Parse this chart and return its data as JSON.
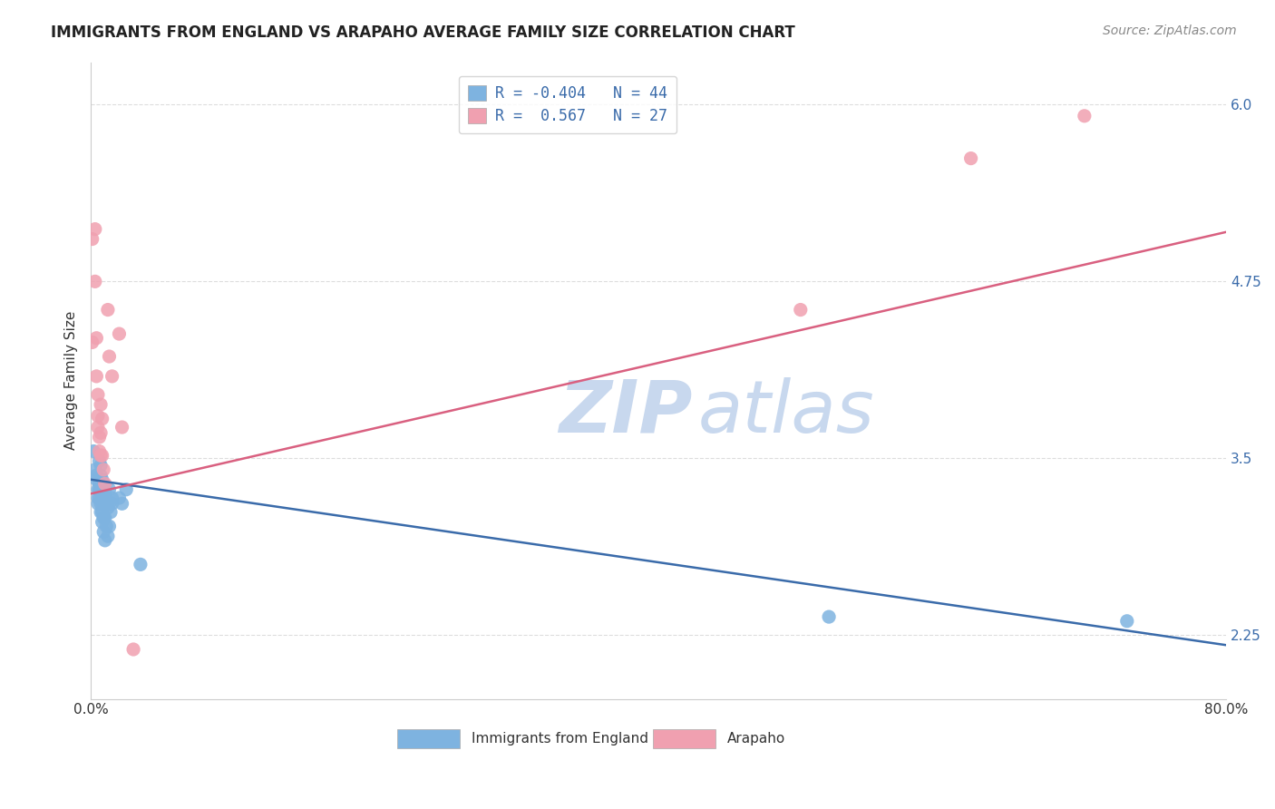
{
  "title": "IMMIGRANTS FROM ENGLAND VS ARAPAHO AVERAGE FAMILY SIZE CORRELATION CHART",
  "source": "Source: ZipAtlas.com",
  "ylabel": "Average Family Size",
  "xlim": [
    0.0,
    0.8
  ],
  "ylim": [
    1.8,
    6.3
  ],
  "yticks": [
    2.25,
    3.5,
    4.75,
    6.0
  ],
  "legend_entry_1": "R = -0.404   N = 44",
  "legend_entry_2": "R =  0.567   N = 27",
  "england_scatter": [
    [
      0.002,
      3.55
    ],
    [
      0.003,
      3.42
    ],
    [
      0.004,
      3.38
    ],
    [
      0.004,
      3.35
    ],
    [
      0.005,
      3.28
    ],
    [
      0.005,
      3.22
    ],
    [
      0.005,
      3.18
    ],
    [
      0.006,
      3.48
    ],
    [
      0.006,
      3.32
    ],
    [
      0.006,
      3.28
    ],
    [
      0.006,
      3.22
    ],
    [
      0.007,
      3.45
    ],
    [
      0.007,
      3.38
    ],
    [
      0.007,
      3.28
    ],
    [
      0.007,
      3.18
    ],
    [
      0.007,
      3.12
    ],
    [
      0.008,
      3.35
    ],
    [
      0.008,
      3.28
    ],
    [
      0.008,
      3.22
    ],
    [
      0.008,
      3.12
    ],
    [
      0.008,
      3.05
    ],
    [
      0.009,
      3.32
    ],
    [
      0.009,
      3.18
    ],
    [
      0.009,
      3.08
    ],
    [
      0.009,
      2.98
    ],
    [
      0.01,
      3.28
    ],
    [
      0.01,
      3.08
    ],
    [
      0.01,
      2.92
    ],
    [
      0.011,
      3.22
    ],
    [
      0.011,
      3.02
    ],
    [
      0.012,
      3.15
    ],
    [
      0.012,
      2.95
    ],
    [
      0.013,
      3.28
    ],
    [
      0.013,
      3.18
    ],
    [
      0.013,
      3.02
    ],
    [
      0.014,
      3.12
    ],
    [
      0.015,
      3.22
    ],
    [
      0.015,
      3.18
    ],
    [
      0.02,
      3.22
    ],
    [
      0.022,
      3.18
    ],
    [
      0.025,
      3.28
    ],
    [
      0.035,
      2.75
    ],
    [
      0.52,
      2.38
    ],
    [
      0.73,
      2.35
    ]
  ],
  "arapaho_scatter": [
    [
      0.001,
      5.05
    ],
    [
      0.001,
      4.32
    ],
    [
      0.003,
      5.12
    ],
    [
      0.003,
      4.75
    ],
    [
      0.004,
      4.35
    ],
    [
      0.004,
      4.08
    ],
    [
      0.005,
      3.95
    ],
    [
      0.005,
      3.8
    ],
    [
      0.005,
      3.72
    ],
    [
      0.006,
      3.65
    ],
    [
      0.006,
      3.55
    ],
    [
      0.007,
      3.88
    ],
    [
      0.007,
      3.68
    ],
    [
      0.007,
      3.52
    ],
    [
      0.008,
      3.78
    ],
    [
      0.008,
      3.52
    ],
    [
      0.009,
      3.42
    ],
    [
      0.01,
      3.32
    ],
    [
      0.012,
      4.55
    ],
    [
      0.013,
      4.22
    ],
    [
      0.015,
      4.08
    ],
    [
      0.02,
      4.38
    ],
    [
      0.022,
      3.72
    ],
    [
      0.03,
      2.15
    ],
    [
      0.5,
      4.55
    ],
    [
      0.62,
      5.62
    ],
    [
      0.7,
      5.92
    ]
  ],
  "england_line": [
    [
      0.0,
      3.35
    ],
    [
      0.8,
      2.18
    ]
  ],
  "arapaho_line": [
    [
      0.0,
      3.25
    ],
    [
      0.8,
      5.1
    ]
  ],
  "england_color": "#7eb3e0",
  "arapaho_color": "#f0a0b0",
  "england_line_color": "#3a6baa",
  "arapaho_line_color": "#d96080",
  "background_color": "#ffffff",
  "grid_color": "#dddddd",
  "watermark_zip": "ZIP",
  "watermark_atlas": "atlas",
  "watermark_color_zip": "#c8d8ee",
  "watermark_color_atlas": "#c8d8ee",
  "title_fontsize": 12,
  "axis_label_fontsize": 11,
  "tick_fontsize": 11,
  "legend_fontsize": 12,
  "source_fontsize": 10,
  "legend_text_color": "#3a6baa",
  "legend_r_color": "#cc3355"
}
